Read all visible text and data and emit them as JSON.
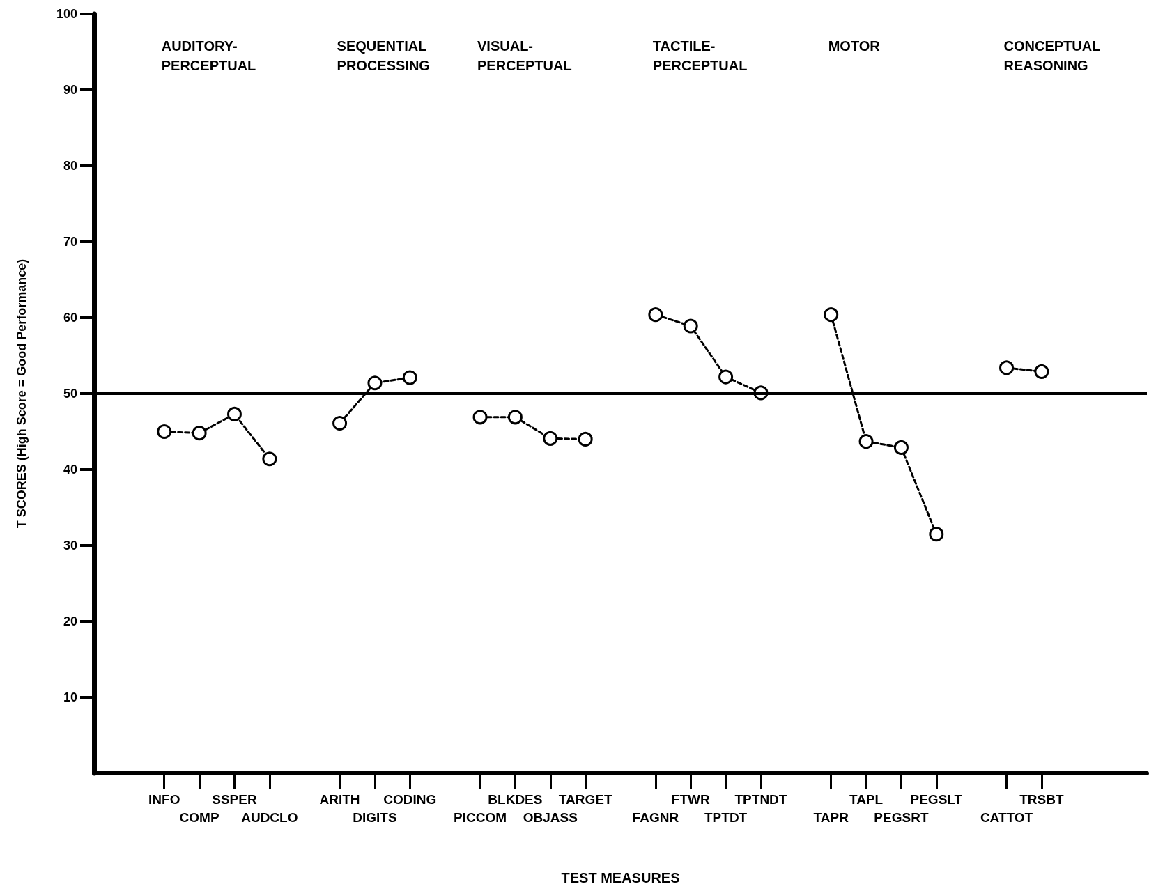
{
  "chart_data": {
    "type": "line",
    "xlabel": "TEST MEASURES",
    "ylabel": "T SCORES (High Score = Good Performance)",
    "annotations": [
      "AUDITORY-\nPERCEPTUAL",
      "SEQUENTIAL\nPROCESSING",
      "VISUAL-\nPERCEPTUAL",
      "TACTILE-\nPERCEPTUAL",
      "MOTOR",
      "CONCEPTUAL\nREASONING"
    ],
    "categories": [
      null,
      null,
      "INFO",
      "COMP",
      "SSPER",
      "AUDCLO",
      null,
      "ARITH",
      "DIGITS",
      "CODING",
      null,
      "PICCOM",
      "BLKDES",
      "OBJASS",
      "TARGET",
      null,
      "FAGNR",
      "FTWR",
      "TPTDT",
      "TPTNDT",
      null,
      "TAPR",
      "TAPL",
      "PEGSRT",
      "PEGSLT",
      null,
      "CATTOT",
      "TRSBT",
      null,
      null,
      null
    ],
    "series": [
      {
        "color": "#000000",
        "values": [
          null,
          null,
          45,
          44.8,
          47.3,
          41.4,
          null,
          46.1,
          51.4,
          52.1,
          null,
          46.9,
          46.9,
          44.1,
          44,
          null,
          60.4,
          58.9,
          52.2,
          50.1,
          null,
          60.4,
          43.7,
          42.9,
          31.5,
          null,
          53.4,
          52.9,
          null,
          null,
          null
        ]
      }
    ],
    "ylim": [
      0,
      100
    ],
    "yticks": [
      10,
      20,
      30,
      40,
      50,
      60,
      70,
      80,
      90,
      100
    ],
    "ref_lines": [
      {
        "axis": "y",
        "value": 50,
        "color": "#000000",
        "line_style": "solid"
      }
    ],
    "grid": false,
    "marker": "circle",
    "line_style": "dashed"
  }
}
